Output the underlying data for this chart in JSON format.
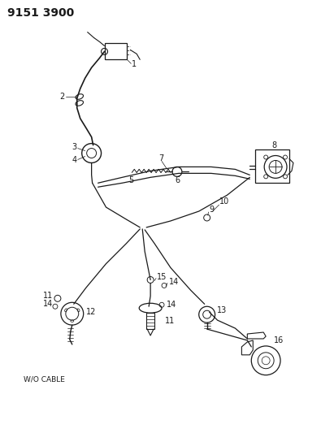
{
  "title": "9151 3900",
  "bg_color": "#ffffff",
  "line_color": "#1a1a1a",
  "text_color": "#1a1a1a",
  "title_fontsize": 10,
  "label_fontsize": 7,
  "figsize": [
    4.11,
    5.33
  ],
  "dpi": 100
}
